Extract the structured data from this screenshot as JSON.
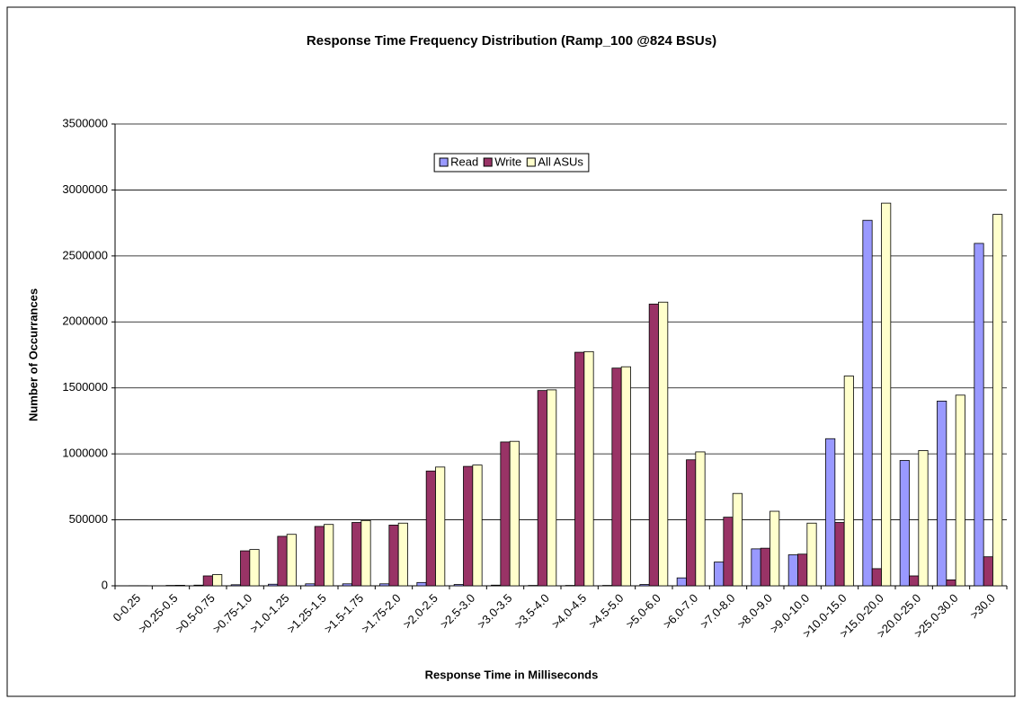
{
  "chart_data": {
    "type": "bar",
    "title": "Response Time Frequency Distribution (Ramp_100 @824 BSUs)",
    "x_label": "Response Time in Milliseconds",
    "y_label": "Number of Occurrances",
    "categories": [
      "0-0.25",
      ">0.25-0.5",
      ">0.5-0.75",
      ">0.75-1.0",
      ">1.0-1.25",
      ">1.25-1.5",
      ">1.5-1.75",
      ">1.75-2.0",
      ">2.0-2.5",
      ">2.5-3.0",
      ">3.0-3.5",
      ">3.5-4.0",
      ">4.0-4.5",
      ">4.5-5.0",
      ">5.0-6.0",
      ">6.0-7.0",
      ">7.0-8.0",
      ">8.0-9.0",
      ">9.0-10.0",
      ">10.0-15.0",
      ">15.0-20.0",
      ">20.0-25.0",
      ">25.0-30.0",
      ">30.0"
    ],
    "series": [
      {
        "name": "Read",
        "color": "#9999ff",
        "values": [
          0,
          0,
          5000,
          8000,
          12000,
          15000,
          15000,
          15000,
          25000,
          10000,
          5000,
          3000,
          3000,
          3000,
          10000,
          60000,
          180000,
          280000,
          235000,
          1115000,
          2770000,
          950000,
          1400000,
          2595000
        ]
      },
      {
        "name": "Write",
        "color": "#993366",
        "values": [
          1000,
          3000,
          75000,
          265000,
          375000,
          450000,
          480000,
          460000,
          870000,
          905000,
          1090000,
          1480000,
          1770000,
          1650000,
          2135000,
          955000,
          520000,
          285000,
          240000,
          480000,
          130000,
          75000,
          45000,
          220000
        ]
      },
      {
        "name": "All ASUs",
        "color": "#ffffcc",
        "values": [
          1000,
          4000,
          85000,
          275000,
          390000,
          465000,
          495000,
          475000,
          900000,
          915000,
          1095000,
          1485000,
          1775000,
          1660000,
          2150000,
          1015000,
          700000,
          565000,
          475000,
          1590000,
          2900000,
          1025000,
          1445000,
          2815000
        ]
      }
    ],
    "ylim": [
      0,
      3500000
    ],
    "yticks": [
      0,
      500000,
      1000000,
      1500000,
      2000000,
      2500000,
      3000000,
      3500000
    ],
    "grid": true
  }
}
